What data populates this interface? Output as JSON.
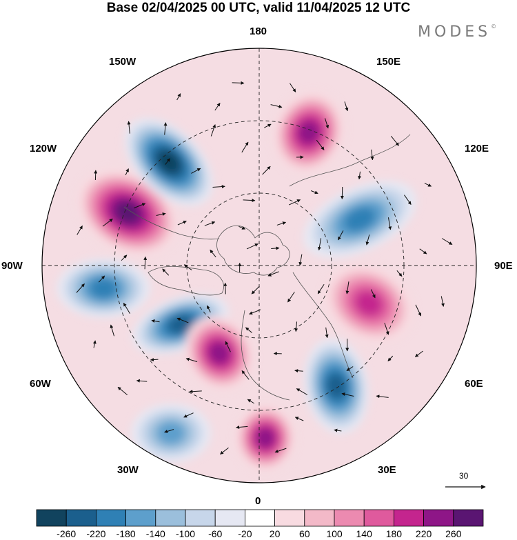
{
  "title": "Base 02/04/2025 00 UTC, valid 11/04/2025 12 UTC",
  "brand": "MODES",
  "brand_mark": "©",
  "longitude_labels": {
    "n180": "180",
    "e150": "150E",
    "e120": "120E",
    "e90": "90E",
    "e60": "60E",
    "e30": "30E",
    "zero": "0",
    "w30": "30W",
    "w60": "60W",
    "w90": "90W",
    "w120": "120W",
    "w150": "150W"
  },
  "vector_reference": "30",
  "colorbar": {
    "ticks": [
      "-260",
      "-220",
      "-180",
      "-140",
      "-100",
      "-60",
      "-20",
      "20",
      "60",
      "100",
      "140",
      "180",
      "220",
      "260"
    ],
    "colors": [
      "#11435e",
      "#1b5f8d",
      "#2f80b5",
      "#5d9fcc",
      "#9bbfdc",
      "#c7d6ea",
      "#e6e8f3",
      "#ffffff",
      "#f8dbe1",
      "#f3b9c8",
      "#ec8ab0",
      "#df5a9d",
      "#c4258e",
      "#8e1687",
      "#5a1572"
    ]
  },
  "anomaly_centers": [
    {
      "type": "positive",
      "value": 260,
      "label": "center-105W"
    },
    {
      "type": "negative",
      "value": -260,
      "label": "center-135W"
    },
    {
      "type": "negative",
      "value": -220,
      "label": "center-75W"
    },
    {
      "type": "negative",
      "value": -180,
      "label": "center-85W"
    },
    {
      "type": "positive",
      "value": 220,
      "label": "center-165E"
    },
    {
      "type": "negative",
      "value": -180,
      "label": "center-110E"
    },
    {
      "type": "positive",
      "value": 180,
      "label": "center-75E"
    },
    {
      "type": "negative",
      "value": -220,
      "label": "center-30E"
    },
    {
      "type": "positive",
      "value": 220,
      "label": "center-0"
    },
    {
      "type": "positive",
      "value": 220,
      "label": "center-50W"
    },
    {
      "type": "negative",
      "value": -140,
      "label": "center-25W"
    }
  ]
}
